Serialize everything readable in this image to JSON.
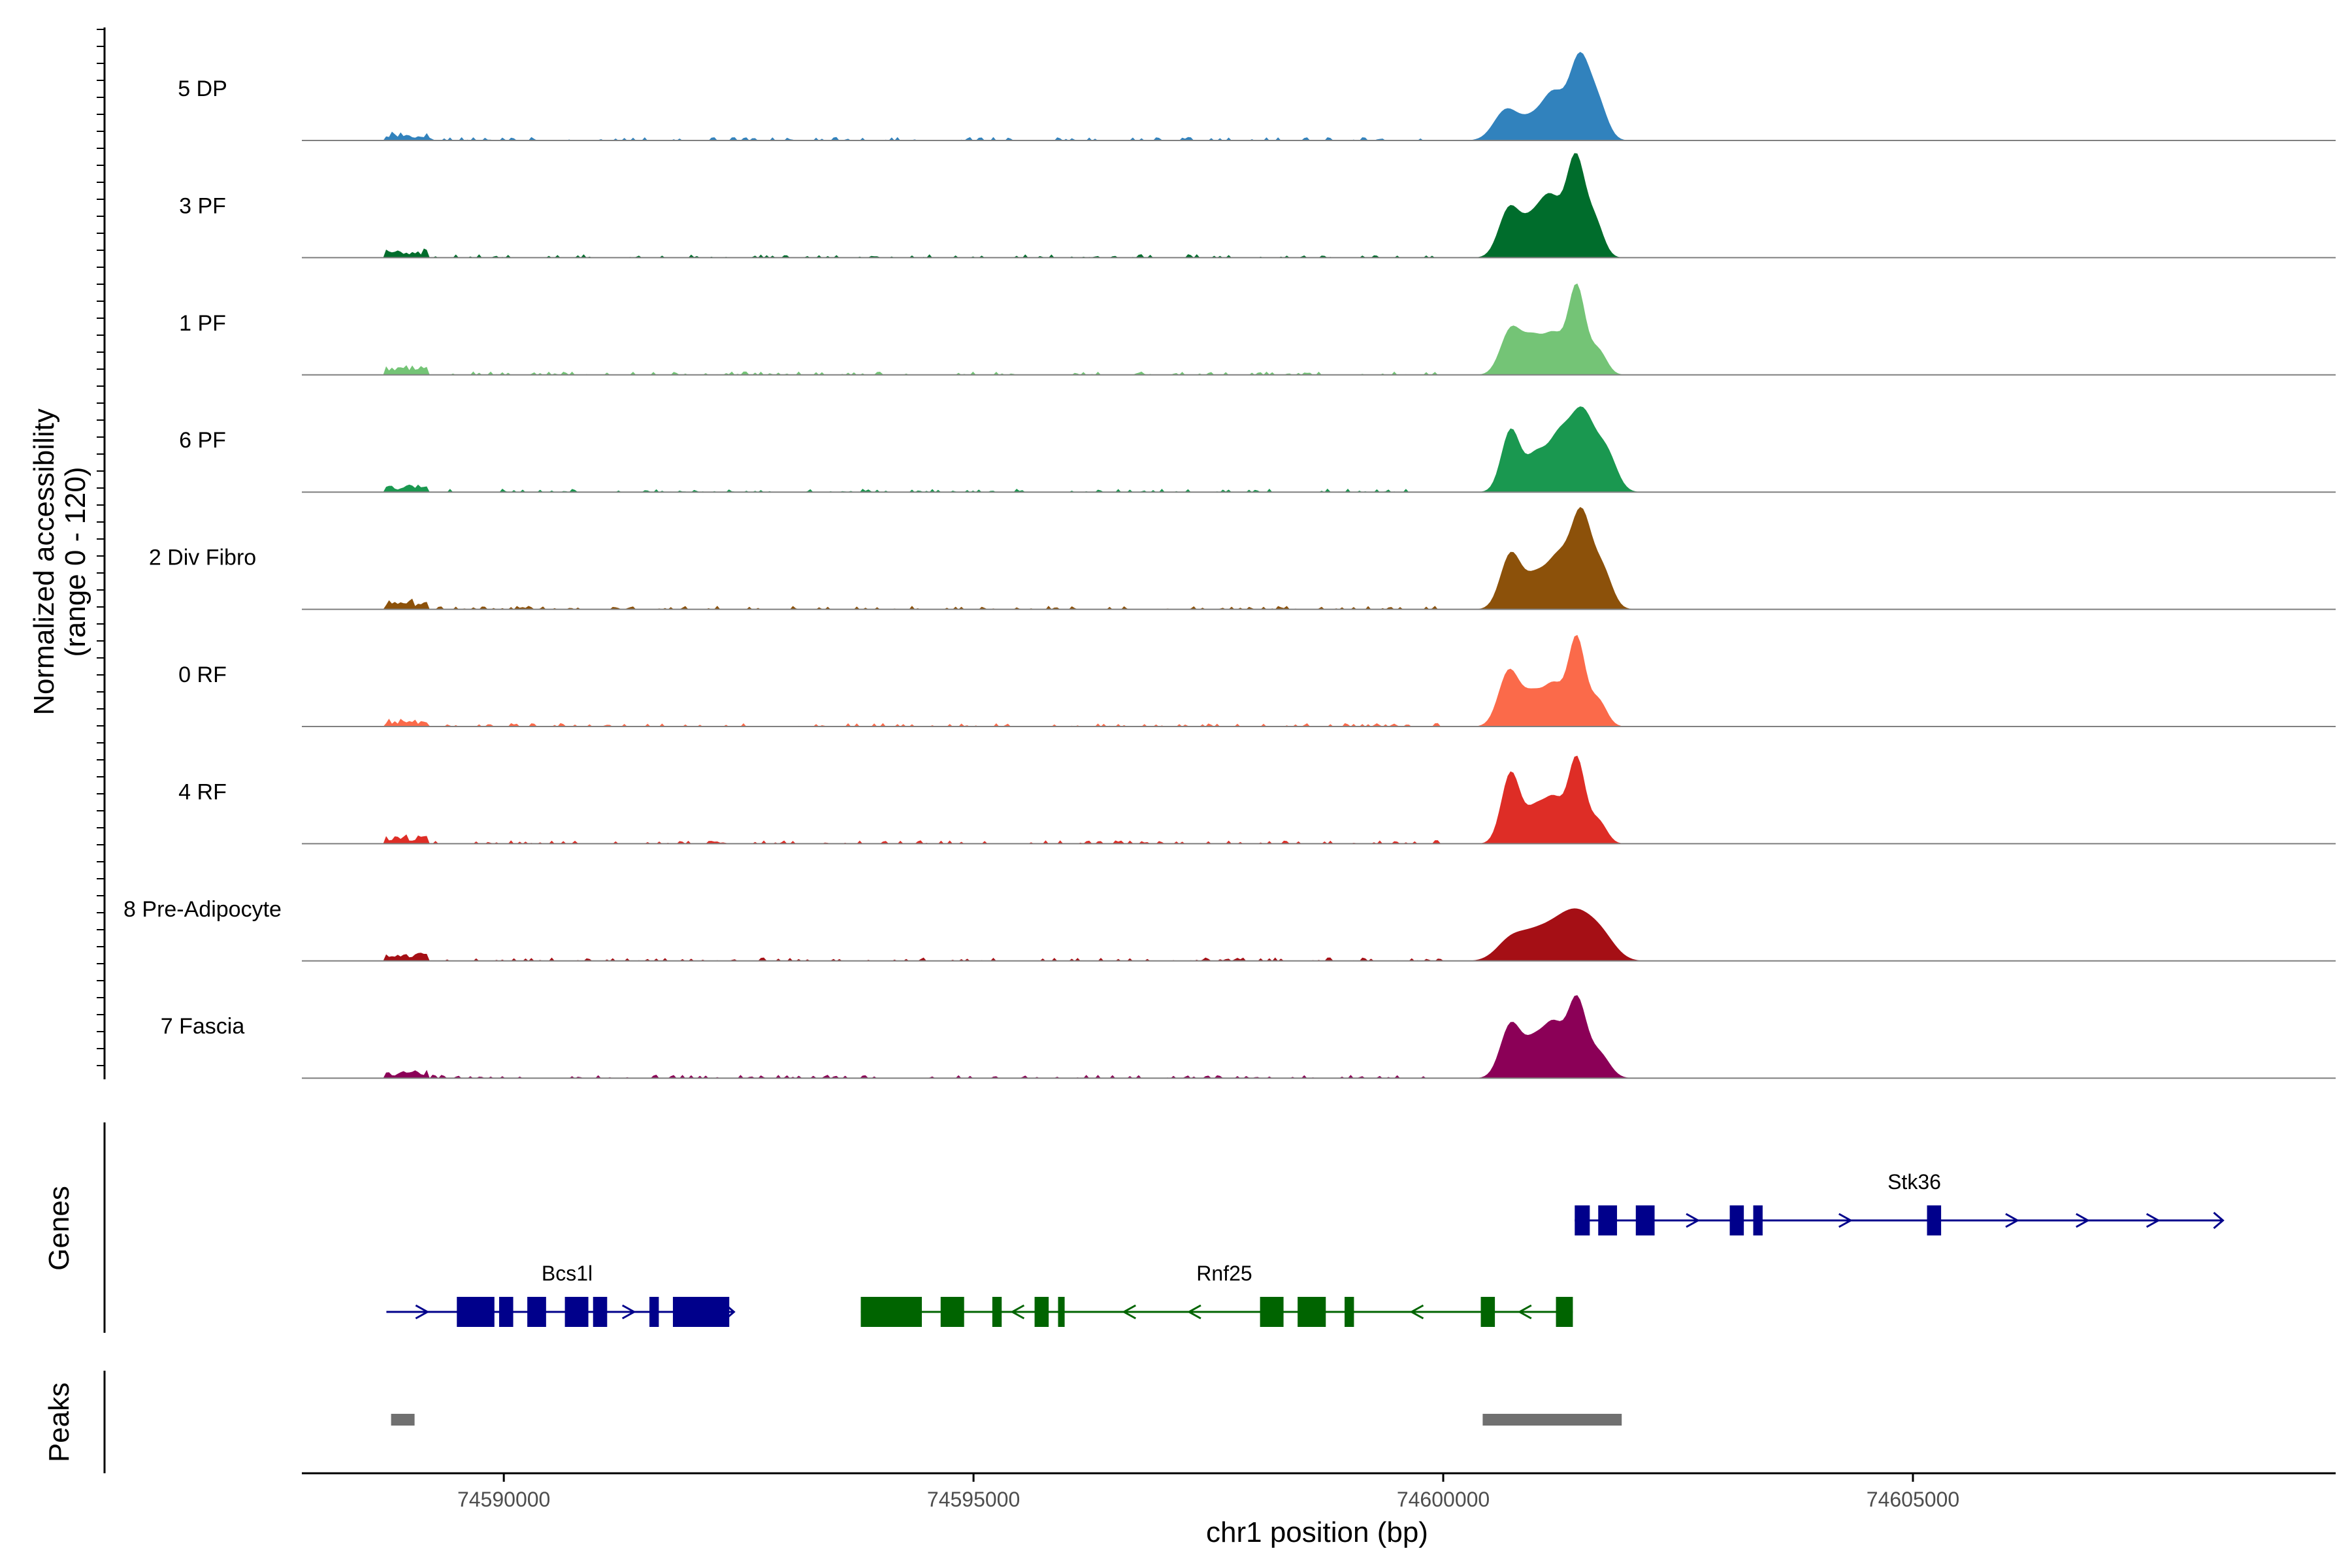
{
  "chart_data": {
    "type": "area",
    "title": "",
    "xlabel": "chr1 position (bp)",
    "ylabel_line1": "Normalized accessibility",
    "ylabel_line2": "(range 0 - 120)",
    "y_range": [
      0,
      120
    ],
    "xlim": [
      74587850,
      74609500
    ],
    "x_ticks": [
      74590000,
      74595000,
      74600000,
      74605000
    ],
    "x_tick_labels": [
      "74590000",
      "74595000",
      "74600000",
      "74605000"
    ],
    "tracks": [
      {
        "name": "5 DP",
        "color": "#3182bd",
        "peaks": [
          {
            "center": 74600670,
            "width": 130,
            "height": 35
          },
          {
            "center": 74600970,
            "width": 130,
            "height": 25
          },
          {
            "center": 74601180,
            "width": 110,
            "height": 47
          },
          {
            "center": 74601450,
            "width": 110,
            "height": 94
          },
          {
            "center": 74601650,
            "width": 100,
            "height": 38
          }
        ]
      },
      {
        "name": "3 PF",
        "color": "#006d2c",
        "peaks": [
          {
            "center": 74600700,
            "width": 110,
            "height": 55
          },
          {
            "center": 74600950,
            "width": 120,
            "height": 40
          },
          {
            "center": 74601150,
            "width": 110,
            "height": 60
          },
          {
            "center": 74601410,
            "width": 100,
            "height": 115
          },
          {
            "center": 74601620,
            "width": 90,
            "height": 38
          }
        ]
      },
      {
        "name": "1 PF",
        "color": "#74c476",
        "peaks": [
          {
            "center": 74600720,
            "width": 110,
            "height": 52
          },
          {
            "center": 74600960,
            "width": 110,
            "height": 40
          },
          {
            "center": 74601180,
            "width": 100,
            "height": 42
          },
          {
            "center": 74601420,
            "width": 90,
            "height": 102
          },
          {
            "center": 74601650,
            "width": 90,
            "height": 28
          }
        ]
      },
      {
        "name": "6 PF",
        "color": "#1a9850",
        "peaks": [
          {
            "center": 74600720,
            "width": 100,
            "height": 72
          },
          {
            "center": 74600980,
            "width": 100,
            "height": 38
          },
          {
            "center": 74601220,
            "width": 120,
            "height": 58
          },
          {
            "center": 74601480,
            "width": 130,
            "height": 90
          },
          {
            "center": 74601740,
            "width": 110,
            "height": 42
          }
        ]
      },
      {
        "name": "2 Div Fibro",
        "color": "#8c510a",
        "peaks": [
          {
            "center": 74600720,
            "width": 110,
            "height": 64
          },
          {
            "center": 74600980,
            "width": 110,
            "height": 34
          },
          {
            "center": 74601220,
            "width": 120,
            "height": 56
          },
          {
            "center": 74601470,
            "width": 110,
            "height": 108
          },
          {
            "center": 74601700,
            "width": 100,
            "height": 42
          }
        ]
      },
      {
        "name": "0 RF",
        "color": "#fb6a4a",
        "peaks": [
          {
            "center": 74600700,
            "width": 110,
            "height": 64
          },
          {
            "center": 74600960,
            "width": 110,
            "height": 36
          },
          {
            "center": 74601180,
            "width": 100,
            "height": 44
          },
          {
            "center": 74601420,
            "width": 90,
            "height": 102
          },
          {
            "center": 74601650,
            "width": 90,
            "height": 30
          }
        ]
      },
      {
        "name": "4 RF",
        "color": "#de2d26",
        "peaks": [
          {
            "center": 74600720,
            "width": 100,
            "height": 82
          },
          {
            "center": 74600980,
            "width": 100,
            "height": 38
          },
          {
            "center": 74601180,
            "width": 100,
            "height": 48
          },
          {
            "center": 74601420,
            "width": 90,
            "height": 98
          },
          {
            "center": 74601650,
            "width": 90,
            "height": 26
          }
        ]
      },
      {
        "name": "8 Pre-Adipocyte",
        "color": "#a50f15",
        "peaks": [
          {
            "center": 74600720,
            "width": 150,
            "height": 24
          },
          {
            "center": 74601000,
            "width": 160,
            "height": 28
          },
          {
            "center": 74601250,
            "width": 150,
            "height": 30
          },
          {
            "center": 74601450,
            "width": 150,
            "height": 38
          },
          {
            "center": 74601680,
            "width": 150,
            "height": 28
          }
        ]
      },
      {
        "name": "7 Fascia",
        "color": "#8b0057",
        "peaks": [
          {
            "center": 74600720,
            "width": 110,
            "height": 62
          },
          {
            "center": 74600980,
            "width": 110,
            "height": 42
          },
          {
            "center": 74601180,
            "width": 100,
            "height": 54
          },
          {
            "center": 74601420,
            "width": 100,
            "height": 90
          },
          {
            "center": 74601660,
            "width": 110,
            "height": 28
          }
        ]
      }
    ],
    "genes_label": "Genes",
    "genes": [
      {
        "name": "Stk36",
        "strand": "+",
        "color": "#00008b",
        "row": 0,
        "start": 74601400,
        "end": 74608300,
        "exons": [
          [
            74601400,
            74601560
          ],
          [
            74601650,
            74601850
          ],
          [
            74602050,
            74602250
          ],
          [
            74603050,
            74603200
          ],
          [
            74603300,
            74603400
          ],
          [
            74605150,
            74605300
          ]
        ]
      },
      {
        "name": "Bcs1l",
        "strand": "+",
        "color": "#00008b",
        "row": 1,
        "start": 74588750,
        "end": 74592450,
        "exons": [
          [
            74589500,
            74589900
          ],
          [
            74589950,
            74590100
          ],
          [
            74590250,
            74590450
          ],
          [
            74590650,
            74590900
          ],
          [
            74590950,
            74591100
          ],
          [
            74591550,
            74591650
          ],
          [
            74591800,
            74592400
          ]
        ]
      },
      {
        "name": "Rnf25",
        "strand": "-",
        "color": "#006400",
        "row": 1,
        "start": 74593800,
        "end": 74601380,
        "exons": [
          [
            74593800,
            74594450
          ],
          [
            74594650,
            74594900
          ],
          [
            74595200,
            74595300
          ],
          [
            74595650,
            74595800
          ],
          [
            74595900,
            74595970
          ],
          [
            74598050,
            74598300
          ],
          [
            74598450,
            74598750
          ],
          [
            74598950,
            74599050
          ],
          [
            74600400,
            74600550
          ],
          [
            74601200,
            74601380
          ]
        ]
      }
    ],
    "peaks_label": "Peaks",
    "peak_regions": [
      {
        "start": 74588800,
        "end": 74589050
      },
      {
        "start": 74600420,
        "end": 74601900
      }
    ]
  }
}
